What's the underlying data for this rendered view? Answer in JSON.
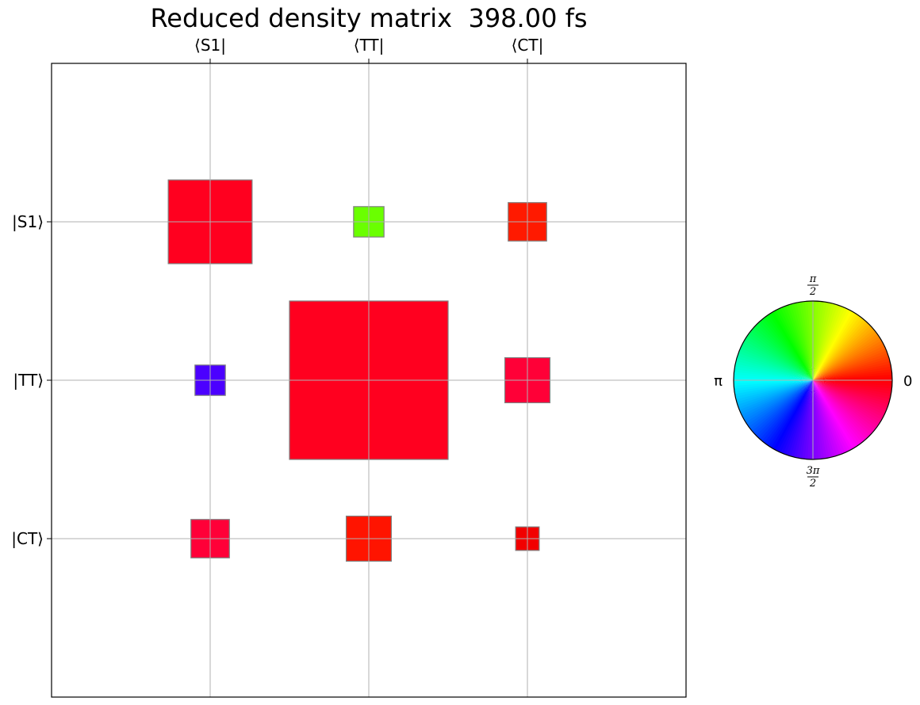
{
  "chart_data": {
    "type": "heatmap",
    "title": "Reduced density matrix  398.00 fs",
    "row_labels": [
      "|S1⟩",
      "|TT⟩",
      "|CT⟩"
    ],
    "col_labels": [
      "⟨S1|",
      "⟨TT|",
      "⟨CT|"
    ],
    "cells": [
      {
        "row": 0,
        "col": 0,
        "magnitude": 0.38,
        "color": "#ff001f"
      },
      {
        "row": 0,
        "col": 1,
        "magnitude": 0.05,
        "color": "#6aff00"
      },
      {
        "row": 0,
        "col": 2,
        "magnitude": 0.08,
        "color": "#ff1a00"
      },
      {
        "row": 1,
        "col": 0,
        "magnitude": 0.05,
        "color": "#4b00ff"
      },
      {
        "row": 1,
        "col": 1,
        "magnitude": 1.36,
        "color": "#ff001f"
      },
      {
        "row": 1,
        "col": 2,
        "magnitude": 0.11,
        "color": "#ff0037"
      },
      {
        "row": 2,
        "col": 0,
        "magnitude": 0.08,
        "color": "#ff0038"
      },
      {
        "row": 2,
        "col": 1,
        "magnitude": 0.11,
        "color": "#ff1400"
      },
      {
        "row": 2,
        "col": 2,
        "magnitude": 0.03,
        "color": "#f20000"
      }
    ],
    "phase_legend": {
      "labels": [
        "0",
        "π/2",
        "π",
        "3π/2"
      ]
    },
    "grid": true
  }
}
